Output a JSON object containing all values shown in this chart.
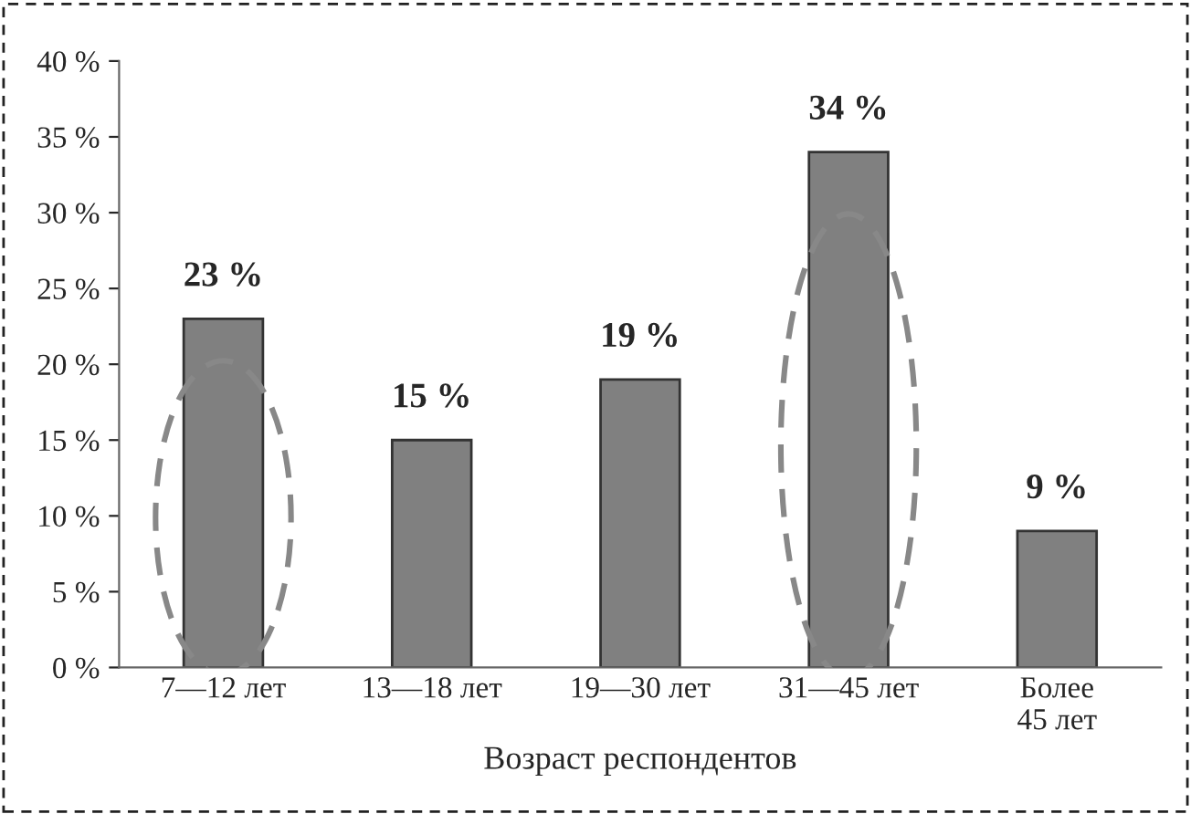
{
  "chart_data": {
    "type": "bar",
    "xlabel": "Возраст респондентов",
    "categories": [
      "7—12 лет",
      "13—18 лет",
      "19—30 лет",
      "31—45 лет",
      "Более\n45 лет"
    ],
    "values": [
      23,
      15,
      19,
      34,
      9
    ],
    "value_labels": [
      "23 %",
      "15 %",
      "19 %",
      "34 %",
      "9 %"
    ],
    "color": "#808080",
    "ylim": [
      0,
      40
    ],
    "yticks": [
      {
        "value": 0,
        "label": "0 %"
      },
      {
        "value": 5,
        "label": "5 %"
      },
      {
        "value": 10,
        "label": "10 %"
      },
      {
        "value": 15,
        "label": "15 %"
      },
      {
        "value": 20,
        "label": "20 %"
      },
      {
        "value": 25,
        "label": "25 %"
      },
      {
        "value": 30,
        "label": "30 %"
      },
      {
        "value": 35,
        "label": "35 %"
      },
      {
        "value": 40,
        "label": "40 %"
      }
    ],
    "grid": false
  }
}
